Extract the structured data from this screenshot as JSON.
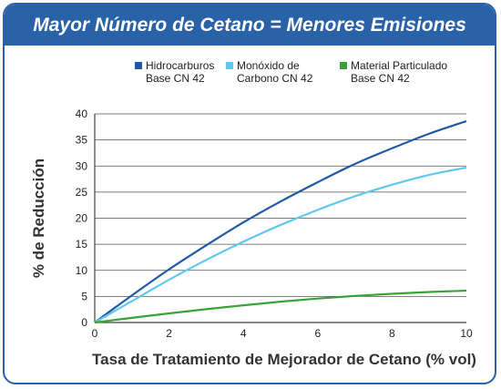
{
  "header": {
    "title": "Mayor Número de Cetano = Menores Emisiones"
  },
  "colors": {
    "banner": "#2a62a8",
    "hidrocarburos": "#1f5aa6",
    "monoxido": "#5ec8ee",
    "particulado": "#3aa23a"
  },
  "chart_data": {
    "type": "line",
    "title": "Mayor Número de Cetano = Menores Emisiones",
    "xlabel": "Tasa de Tratamiento de Mejorador de Cetano (% vol)",
    "ylabel": "% de Reducción",
    "xlim": [
      0,
      10
    ],
    "ylim": [
      0,
      40
    ],
    "x_ticks": [
      "0",
      "2",
      "4",
      "6",
      "8",
      "10"
    ],
    "y_ticks": [
      "0",
      "5",
      "10",
      "15",
      "20",
      "25",
      "30",
      "35",
      "40"
    ],
    "grid": "horizontal",
    "legend_position": "top",
    "series": [
      {
        "name_lines": [
          "Hidrocarburos",
          "Base CN 42"
        ],
        "color": "#1f5aa6",
        "x": [
          0,
          1,
          2,
          3,
          4,
          5,
          6,
          7,
          8,
          9,
          10
        ],
        "y": [
          0,
          5.2,
          10.2,
          14.8,
          19.2,
          23.2,
          26.9,
          30.4,
          33.4,
          36.2,
          38.6
        ]
      },
      {
        "name_lines": [
          "Monóxido de",
          "Carbono CN 42"
        ],
        "color": "#5ec8ee",
        "x": [
          0,
          1,
          2,
          3,
          4,
          5,
          6,
          7,
          8,
          9,
          10
        ],
        "y": [
          0,
          4.1,
          8.2,
          12.0,
          15.5,
          18.7,
          21.6,
          24.2,
          26.4,
          28.3,
          29.7
        ]
      },
      {
        "name_lines": [
          "Material Particulado",
          "Base CN 42"
        ],
        "color": "#3aa23a",
        "x": [
          0,
          1,
          2,
          3,
          4,
          5,
          6,
          7,
          8,
          9,
          10
        ],
        "y": [
          0,
          0.9,
          1.75,
          2.55,
          3.3,
          4.0,
          4.6,
          5.1,
          5.5,
          5.85,
          6.1
        ]
      }
    ]
  }
}
